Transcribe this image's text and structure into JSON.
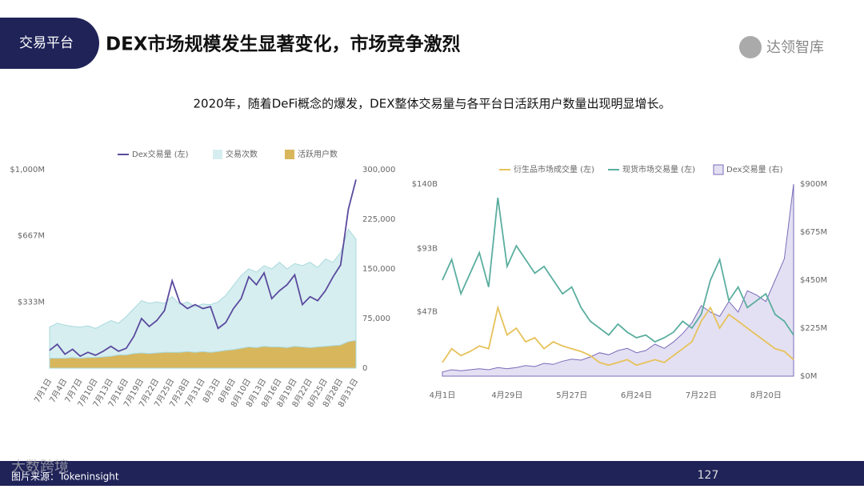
{
  "header": {
    "tag": "交易平台",
    "title": "DEX市场规模发生显著变化，市场竞争激烈",
    "logo": "达领智库"
  },
  "subtitle": "2020年，随着DeFi概念的爆发，DEX整体交易量与各平台日活跃用户数量出现明显增长。",
  "footer": {
    "source": "图片来源：Tokeninsight",
    "page": "127",
    "watermark": "大数跨境"
  },
  "chart_data": [
    {
      "type": "line",
      "categories": [
        "7月1日",
        null,
        "7月4日",
        null,
        "7月7日",
        null,
        "7月10日",
        null,
        "7月13日",
        null,
        "7月16日",
        null,
        "7月19日",
        null,
        "7月22日",
        null,
        "7月25日",
        null,
        "7月28日",
        null,
        "7月31日",
        null,
        "8月3日",
        null,
        "8月6日",
        null,
        "8月10日",
        null,
        "8月13日",
        null,
        "8月16日",
        null,
        "8月19日",
        null,
        "8月22日",
        null,
        "8月25日",
        null,
        "8月28日",
        null,
        "8月31日"
      ],
      "series": [
        {
          "name": "交易次数",
          "kind": "area",
          "axis": "y2",
          "color": "#d6eef0",
          "values": [
            62000,
            68000,
            65000,
            63000,
            62000,
            64000,
            60000,
            66000,
            72000,
            68000,
            78000,
            90000,
            102000,
            98000,
            100000,
            98000,
            108000,
            96000,
            100000,
            93000,
            97000,
            96000,
            100000,
            110000,
            125000,
            140000,
            150000,
            145000,
            155000,
            150000,
            160000,
            150000,
            158000,
            155000,
            160000,
            152000,
            165000,
            160000,
            175000,
            210000,
            195000
          ]
        },
        {
          "name": "活跃用户数",
          "kind": "area",
          "axis": "y2",
          "color": "#d8b65c",
          "values": [
            15000,
            15000,
            15000,
            16000,
            15000,
            16000,
            16000,
            17000,
            18000,
            20000,
            20000,
            22000,
            23000,
            22000,
            23000,
            24000,
            24000,
            24000,
            25000,
            24000,
            25000,
            24000,
            25000,
            27000,
            28000,
            30000,
            32000,
            31000,
            33000,
            32000,
            32000,
            31000,
            33000,
            32000,
            31000,
            32000,
            33000,
            34000,
            35000,
            40000,
            42000
          ]
        },
        {
          "name": "Dex交易量 (左)",
          "kind": "line",
          "color": "#5b4a9e",
          "values": [
            90,
            120,
            70,
            95,
            60,
            80,
            65,
            85,
            110,
            85,
            100,
            160,
            250,
            210,
            240,
            290,
            440,
            330,
            300,
            320,
            300,
            310,
            200,
            230,
            300,
            350,
            460,
            420,
            480,
            350,
            390,
            420,
            470,
            320,
            360,
            340,
            390,
            460,
            520,
            800,
            950
          ]
        }
      ],
      "legend_order": [
        2,
        0,
        1
      ],
      "ylim": [
        0,
        1000
      ],
      "yticks": [
        {
          "value": 333,
          "label": "$333M"
        },
        {
          "value": 667,
          "label": "$667M"
        },
        {
          "value": 1000,
          "label": "$1,000M"
        }
      ],
      "y2lim": [
        0,
        300000
      ],
      "y2ticks": [
        0,
        {
          "value": 75000,
          "label": "75,000"
        },
        {
          "value": 150000,
          "label": "150,000"
        },
        {
          "value": 225000,
          "label": "225,000"
        },
        {
          "value": 300000,
          "label": "300,000"
        }
      ]
    },
    {
      "type": "line",
      "categories": [
        "4月1日",
        null,
        null,
        null,
        null,
        null,
        null,
        "4月29日",
        null,
        null,
        null,
        null,
        null,
        null,
        "5月27日",
        null,
        null,
        null,
        null,
        null,
        null,
        "6月24日",
        null,
        null,
        null,
        null,
        null,
        null,
        "7月22日",
        null,
        null,
        null,
        null,
        null,
        null,
        "8月20日",
        null,
        null,
        null
      ],
      "series": [
        {
          "name": "Dex交易量 (右)",
          "kind": "area",
          "axis": "y2",
          "color": "#e4e0f3",
          "values": [
            20,
            30,
            25,
            30,
            35,
            30,
            40,
            35,
            40,
            50,
            45,
            60,
            55,
            70,
            80,
            75,
            90,
            110,
            100,
            120,
            130,
            110,
            120,
            150,
            130,
            160,
            200,
            250,
            330,
            300,
            280,
            350,
            300,
            400,
            380,
            350,
            450,
            550,
            900
          ]
        },
        {
          "name": "衍生品市场成交量 (左)",
          "kind": "line",
          "color": "#e6c25a",
          "values": [
            10,
            20,
            15,
            18,
            22,
            20,
            50,
            30,
            35,
            25,
            28,
            20,
            25,
            22,
            20,
            18,
            15,
            10,
            8,
            10,
            12,
            8,
            10,
            12,
            10,
            15,
            20,
            25,
            40,
            50,
            35,
            45,
            40,
            35,
            30,
            25,
            20,
            18,
            12
          ]
        },
        {
          "name": "现货市场交易量 (左)",
          "kind": "line",
          "color": "#5aae9f",
          "values": [
            70,
            85,
            60,
            75,
            90,
            65,
            130,
            80,
            95,
            85,
            75,
            80,
            70,
            60,
            65,
            50,
            40,
            35,
            30,
            38,
            32,
            28,
            30,
            25,
            28,
            32,
            40,
            35,
            45,
            70,
            85,
            55,
            65,
            50,
            55,
            60,
            45,
            40,
            30
          ]
        }
      ],
      "legend_order": [
        1,
        2,
        0
      ],
      "ylim": [
        0,
        140
      ],
      "yticks": [
        {
          "value": 47,
          "label": "$47B"
        },
        {
          "value": 93,
          "label": "$93B"
        },
        {
          "value": 140,
          "label": "$140B"
        }
      ],
      "y2lim": [
        0,
        900
      ],
      "y2ticks": [
        {
          "value": 0,
          "label": "$0M"
        },
        {
          "value": 225,
          "label": "$225M"
        },
        {
          "value": 450,
          "label": "$450M"
        },
        {
          "value": 675,
          "label": "$675M"
        },
        {
          "value": 900,
          "label": "$900M"
        }
      ]
    }
  ]
}
